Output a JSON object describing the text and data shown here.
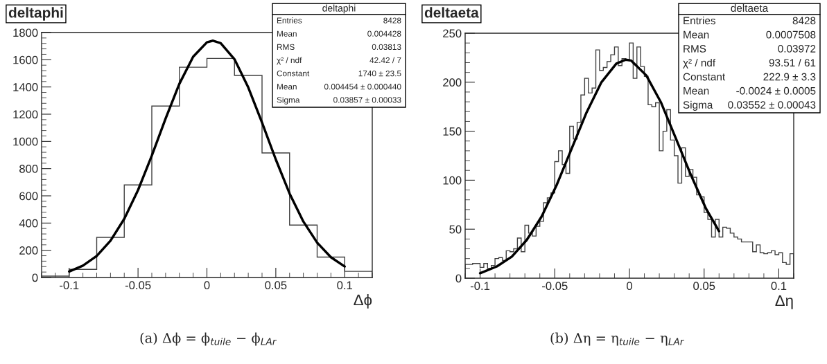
{
  "chart_data": [
    {
      "type": "histogram",
      "title": "deltaphi",
      "xlabel": "Δϕ",
      "color": "#404040",
      "bins": [
        -0.12,
        -0.1,
        -0.08,
        -0.06,
        -0.04,
        -0.02,
        0,
        0.02,
        0.04,
        0.06,
        0.08,
        0.1,
        0.12
      ],
      "values": [
        10,
        60,
        295,
        680,
        1260,
        1545,
        1610,
        1485,
        915,
        385,
        150,
        45
      ],
      "series": [
        {
          "type": "line",
          "color": "#000000",
          "x": [
            -0.1,
            -0.09,
            -0.08,
            -0.07,
            -0.06,
            -0.05,
            -0.04,
            -0.03,
            -0.02,
            -0.01,
            0,
            0.004454,
            0.01,
            0.02,
            0.03,
            0.04,
            0.05,
            0.06,
            0.07,
            0.08,
            0.09,
            0.1
          ],
          "values": [
            44,
            87,
            158,
            270,
            431,
            642,
            896,
            1168,
            1423,
            1622,
            1728,
            1740,
            1722,
            1604,
            1397,
            1138,
            867,
            617,
            411,
            256,
            149,
            81
          ]
        }
      ],
      "xlim": [
        -0.12,
        0.12
      ],
      "xticks": [
        -0.1,
        -0.05,
        0,
        0.05,
        0.1
      ],
      "ylim": [
        0,
        1800
      ],
      "yticks": [
        0,
        200,
        400,
        600,
        800,
        1000,
        1200,
        1400,
        1600,
        1800
      ],
      "annotations": [
        "deltaphi",
        "Entries",
        "8428",
        "Mean",
        "0.004428",
        "RMS",
        "0.03813",
        "χ² / ndf",
        "42.42 / 7",
        "Constant",
        "1740 ± 23.5",
        "Mean",
        "0.004454 ± 0.000440",
        "Sigma",
        "0.03857 ± 0.00033",
        "(a) Δϕ = ϕ$_{tuile}$ − ϕ$_{LAr}$"
      ]
    },
    {
      "type": "histogram",
      "title": "deltaeta",
      "xlabel": "Δη",
      "color": "#404040",
      "bins": [
        -0.11,
        -0.1075,
        -0.105,
        -0.1025,
        -0.1,
        -0.0975,
        -0.095,
        -0.0925,
        -0.09,
        -0.0875,
        -0.085,
        -0.0825,
        -0.08,
        -0.0775,
        -0.075,
        -0.0725,
        -0.07,
        -0.0675,
        -0.065,
        -0.0625,
        -0.06,
        -0.0575,
        -0.055,
        -0.0525,
        -0.05,
        -0.0475,
        -0.045,
        -0.0425,
        -0.04,
        -0.0375,
        -0.035,
        -0.0325,
        -0.03,
        -0.0275,
        -0.025,
        -0.0225,
        -0.02,
        -0.0175,
        -0.015,
        -0.0125,
        -0.01,
        -0.0075,
        -0.005,
        -0.0025,
        0,
        0.0025,
        0.005,
        0.0075,
        0.01,
        0.0125,
        0.015,
        0.0175,
        0.02,
        0.0225,
        0.025,
        0.0275,
        0.03,
        0.0325,
        0.035,
        0.0375,
        0.04,
        0.0425,
        0.045,
        0.0475,
        0.05,
        0.0525,
        0.055,
        0.0575,
        0.06,
        0.0625,
        0.065,
        0.0675,
        0.07,
        0.0725,
        0.075,
        0.0775,
        0.08,
        0.0825,
        0.085,
        0.0875,
        0.09,
        0.0925,
        0.095,
        0.0975,
        0.1,
        0.1025,
        0.105,
        0.1075,
        0.11
      ],
      "values": [
        14,
        14,
        15,
        15,
        11,
        15,
        10,
        13,
        20,
        21,
        18,
        28,
        27,
        30,
        41,
        27,
        54,
        46,
        43,
        53,
        58,
        77,
        82,
        87,
        119,
        130,
        116,
        107,
        155,
        142,
        159,
        187,
        204,
        189,
        194,
        233,
        212,
        215,
        221,
        228,
        236,
        217,
        224,
        223,
        240,
        204,
        236,
        216,
        206,
        177,
        175,
        179,
        130,
        150,
        172,
        141,
        125,
        97,
        133,
        104,
        111,
        103,
        85,
        83,
        67,
        60,
        42,
        60,
        42,
        52,
        51,
        46,
        42,
        40,
        37,
        37,
        37,
        27,
        34,
        26,
        25,
        26,
        28,
        24,
        26,
        16,
        14,
        25
      ],
      "series": [
        {
          "type": "line",
          "color": "#000000",
          "x": [
            -0.1,
            -0.08875,
            -0.07875,
            -0.06875,
            -0.05875,
            -0.04875,
            -0.03875,
            -0.02875,
            -0.01875,
            -0.00875,
            -0.0024,
            0.00125,
            0.01125,
            0.02125,
            0.03125,
            0.04125,
            0.05125,
            0.06
          ],
          "values": [
            5,
            12,
            22,
            39,
            63,
            95,
            132,
            169,
            200,
            219,
            223,
            222,
            207,
            179,
            142,
            105,
            71,
            48
          ]
        }
      ],
      "xlim": [
        -0.11,
        0.11
      ],
      "xticks": [
        -0.1,
        -0.05,
        0,
        0.05,
        0.1
      ],
      "ylim": [
        0,
        250
      ],
      "yticks": [
        0,
        50,
        100,
        150,
        200,
        250
      ],
      "annotations": [
        "deltaeta",
        "Entries",
        "8428",
        "Mean",
        "0.0007508",
        "RMS",
        "0.03972",
        "χ² / ndf",
        "93.51 / 61",
        "Constant",
        "222.9 ± 3.3",
        "Mean",
        "-0.0024 ± 0.0005",
        "Sigma",
        "0.03552 ± 0.00043",
        "(b) Δη = η$_{tuile}$ − η$_{LAr}$"
      ]
    }
  ]
}
